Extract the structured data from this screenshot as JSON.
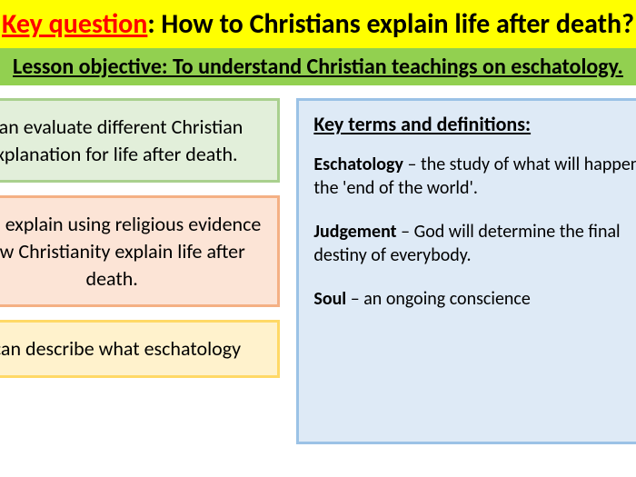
{
  "question": {
    "label": "Key question",
    "text": ": How to Christians explain life after death?"
  },
  "objective": "Lesson objective: To understand Christian teachings on eschatology.",
  "cards": {
    "green": "I can evaluate different Christian explanation for life after death.",
    "pink": "I can explain using religious evidence how Christianity explain life after death.",
    "yellow": "I can describe what eschatology"
  },
  "keyterms": {
    "title": "Key terms and definitions:",
    "items": [
      {
        "name": "Eschatology",
        "def": " – the study of what will happen at the 'end of the world'."
      },
      {
        "name": "Judgement",
        "def": " – God will determine the final destiny of everybody."
      },
      {
        "name": "Soul",
        "def": " – an ongoing conscience"
      }
    ]
  },
  "colors": {
    "yellow_bg": "#ffff00",
    "green_bg": "#92d050",
    "card_green_bg": "#e2efda",
    "card_pink_bg": "#fce4d6",
    "card_yellow_bg": "#fff2cc",
    "right_bg": "#deeaf6"
  }
}
